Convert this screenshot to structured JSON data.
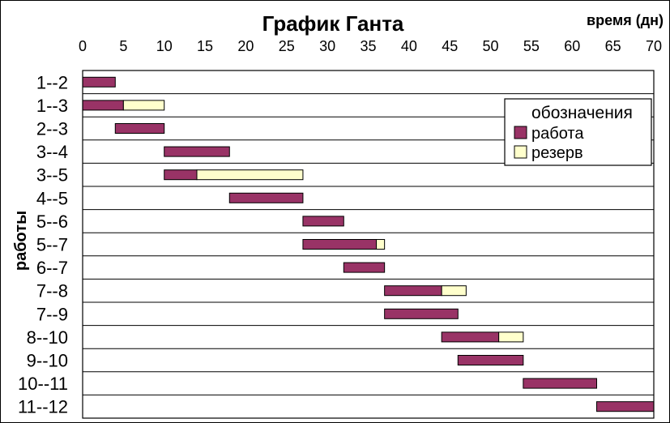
{
  "colors": {
    "work": "#993366",
    "reserve": "#FFFFCC",
    "grid": "#000000",
    "frame": "#000000"
  },
  "chart_data": {
    "type": "bar",
    "orientation": "horizontal-stacked",
    "title": "График Ганта",
    "xlabel": "время (дн)",
    "ylabel": "работы",
    "xlim": [
      0,
      70
    ],
    "xticks": [
      0,
      5,
      10,
      15,
      20,
      25,
      30,
      35,
      40,
      45,
      50,
      55,
      60,
      65,
      70
    ],
    "grid": "horizontal",
    "legend": {
      "title": "обозначения",
      "placement": "top-right",
      "entries": [
        "работа",
        "резерв"
      ]
    },
    "categories": [
      "1--2",
      "1--3",
      "2--3",
      "3--4",
      "3--5",
      "4--5",
      "5--6",
      "5--7",
      "6--7",
      "7--8",
      "7--9",
      "8--10",
      "9--10",
      "10--11",
      "11--12"
    ],
    "start": [
      0,
      0,
      4,
      10,
      10,
      18,
      27,
      27,
      32,
      37,
      37,
      44,
      46,
      54,
      63
    ],
    "series": [
      {
        "name": "работа",
        "values": [
          4,
          5,
          6,
          8,
          4,
          9,
          5,
          9,
          5,
          7,
          9,
          7,
          8,
          9,
          7
        ]
      },
      {
        "name": "резерв",
        "values": [
          0,
          5,
          0,
          0,
          13,
          0,
          0,
          1,
          0,
          3,
          0,
          3,
          0,
          0,
          0
        ]
      }
    ]
  }
}
